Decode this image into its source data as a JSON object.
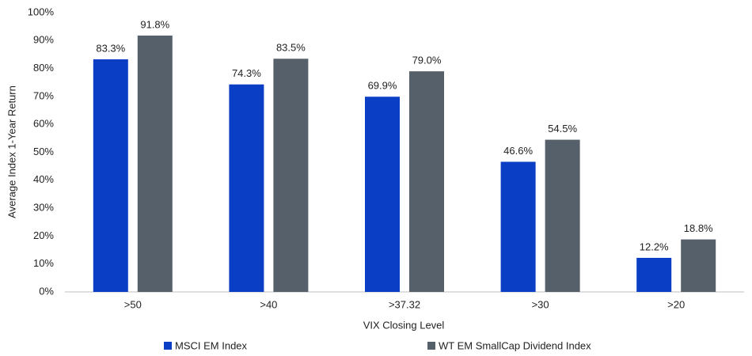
{
  "chart_data": {
    "type": "bar",
    "categories": [
      ">50",
      ">40",
      ">37.32",
      ">30",
      ">20"
    ],
    "series": [
      {
        "name": "MSCI EM Index",
        "color": "#0a3ec4",
        "values": [
          83.3,
          74.3,
          69.9,
          46.6,
          12.2
        ],
        "value_labels": [
          "83.3%",
          "74.3%",
          "69.9%",
          "46.6%",
          "12.2%"
        ]
      },
      {
        "name": "WT EM SmallCap Dividend Index",
        "color": "#56606a",
        "values": [
          91.8,
          83.5,
          79.0,
          54.5,
          18.8
        ],
        "value_labels": [
          "91.8%",
          "83.5%",
          "79.0%",
          "54.5%",
          "18.8%"
        ]
      }
    ],
    "x_label": "VIX Closing Level",
    "y_label": "Average Index 1-Year Return",
    "ylim": [
      0,
      100
    ],
    "yticks": [
      {
        "value": 0,
        "label": "0%"
      },
      {
        "value": 10,
        "label": "10%"
      },
      {
        "value": 20,
        "label": "20%"
      },
      {
        "value": 30,
        "label": "30%"
      },
      {
        "value": 40,
        "label": "40%"
      },
      {
        "value": 50,
        "label": "50%"
      },
      {
        "value": 60,
        "label": "60%"
      },
      {
        "value": 70,
        "label": "70%"
      },
      {
        "value": 80,
        "label": "80%"
      },
      {
        "value": 90,
        "label": "90%"
      },
      {
        "value": 100,
        "label": "100%"
      }
    ],
    "grid": false,
    "legend": "bottom"
  }
}
